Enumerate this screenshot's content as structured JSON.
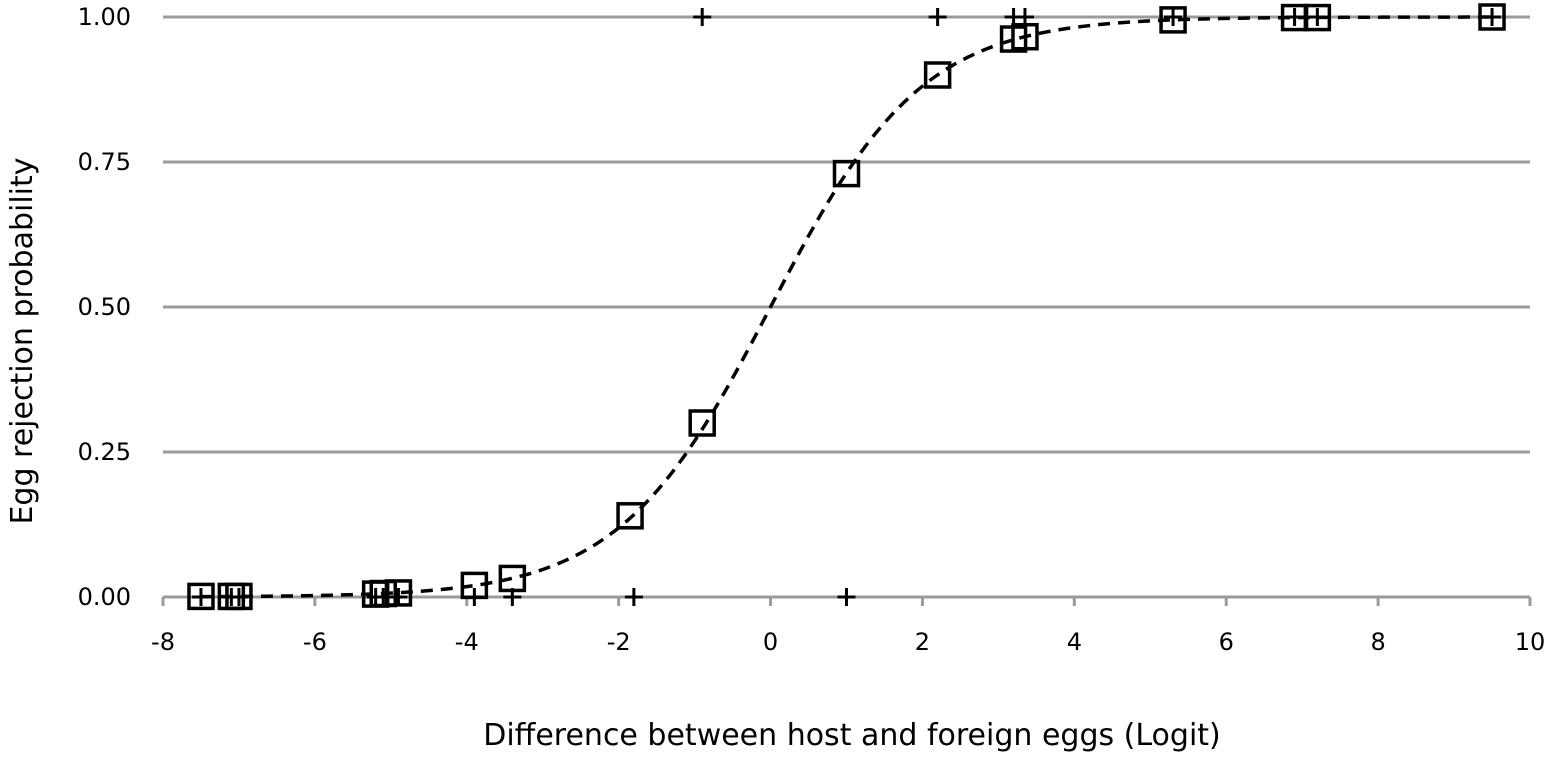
{
  "chart_data": {
    "type": "scatter",
    "title": "",
    "xlabel": "Difference between host and foreign eggs (Logit)",
    "ylabel": "Egg rejection probability",
    "xlim": [
      -8,
      10
    ],
    "ylim": [
      0,
      1
    ],
    "x_ticks": [
      "-8",
      "-6",
      "-4",
      "-2",
      "0",
      "2",
      "4",
      "6",
      "8",
      "10"
    ],
    "y_ticks": [
      "0.00",
      "0.25",
      "0.50",
      "0.75",
      "1.00"
    ],
    "grid": "horizontal",
    "series": [
      {
        "marker": "plus",
        "points": [
          {
            "x": -7.5,
            "y": 0
          },
          {
            "x": -7.1,
            "y": 0
          },
          {
            "x": -7.0,
            "y": 0
          },
          {
            "x": -5.2,
            "y": 0
          },
          {
            "x": -5.1,
            "y": 0
          },
          {
            "x": -4.9,
            "y": 0
          },
          {
            "x": -3.9,
            "y": 0
          },
          {
            "x": -3.4,
            "y": 0
          },
          {
            "x": -1.8,
            "y": 0
          },
          {
            "x": 1.0,
            "y": 0
          },
          {
            "x": -0.9,
            "y": 1
          },
          {
            "x": 2.2,
            "y": 1
          },
          {
            "x": 3.2,
            "y": 1
          },
          {
            "x": 3.35,
            "y": 1
          },
          {
            "x": 5.3,
            "y": 1
          },
          {
            "x": 6.9,
            "y": 1
          },
          {
            "x": 7.2,
            "y": 1
          },
          {
            "x": 9.5,
            "y": 1
          }
        ]
      },
      {
        "marker": "square",
        "points": [
          {
            "x": -7.5,
            "y": 0.001
          },
          {
            "x": -7.1,
            "y": 0.001
          },
          {
            "x": -7.0,
            "y": 0.001
          },
          {
            "x": -5.2,
            "y": 0.005
          },
          {
            "x": -5.1,
            "y": 0.006
          },
          {
            "x": -4.9,
            "y": 0.007
          },
          {
            "x": -3.9,
            "y": 0.02
          },
          {
            "x": -3.4,
            "y": 0.032
          },
          {
            "x": -1.85,
            "y": 0.14
          },
          {
            "x": -0.9,
            "y": 0.3
          },
          {
            "x": 1.0,
            "y": 0.73
          },
          {
            "x": 2.2,
            "y": 0.9
          },
          {
            "x": 3.2,
            "y": 0.962
          },
          {
            "x": 3.35,
            "y": 0.966
          },
          {
            "x": 5.3,
            "y": 0.995
          },
          {
            "x": 6.9,
            "y": 0.999
          },
          {
            "x": 7.2,
            "y": 0.999
          },
          {
            "x": 9.5,
            "y": 1.0
          }
        ]
      }
    ],
    "fit_curve": {
      "style": "dashed",
      "x_range": [
        -7.5,
        9.5
      ],
      "model": "logistic",
      "slope": 1.0
    }
  }
}
